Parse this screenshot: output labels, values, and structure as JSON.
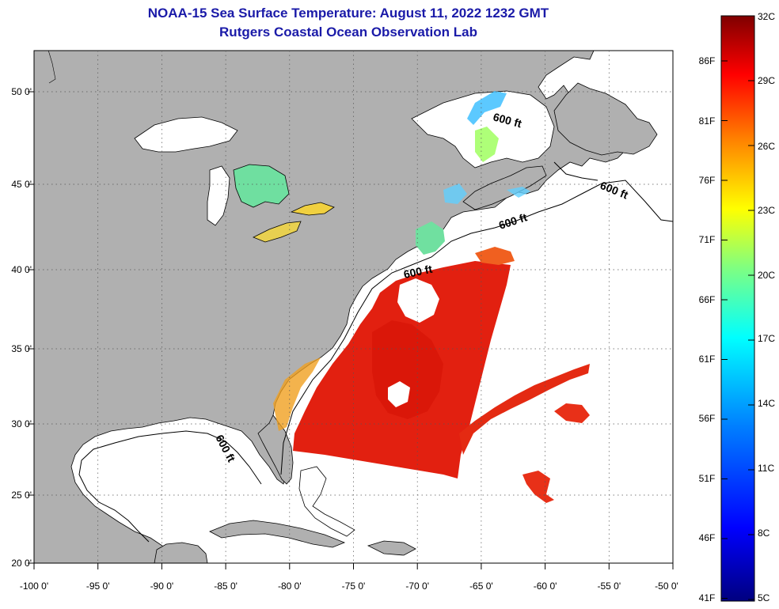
{
  "title": "NOAA-15 Sea Surface Temperature:  August 11, 2022 1232 GMT",
  "subtitle": "Rutgers Coastal Ocean Observation Lab",
  "axes": {
    "lon_labels": [
      "-100 0'",
      "-95 0'",
      "-90 0'",
      "-85 0'",
      "-80 0'",
      "-75 0'",
      "-70 0'",
      "-65 0'",
      "-60 0'",
      "-55 0'",
      "-50 0'"
    ],
    "lat_labels": [
      "50 0'",
      "45 0'",
      "40 0'",
      "35 0'",
      "30 0'",
      "25 0'",
      "20 0'"
    ]
  },
  "contour_label": "600 ft",
  "colorbar": {
    "celsius_labels": [
      "32C",
      "29C",
      "26C",
      "23C",
      "20C",
      "17C",
      "14C",
      "11C",
      "8C",
      "5C"
    ],
    "fahrenheit_labels": [
      "86F",
      "81F",
      "76F",
      "71F",
      "66F",
      "61F",
      "56F",
      "51F",
      "46F",
      "41F"
    ],
    "colors": [
      "#00007f",
      "#0000ff",
      "#0080ff",
      "#00ffff",
      "#80ff80",
      "#ffff00",
      "#ff8000",
      "#ff0000",
      "#7f0000"
    ]
  },
  "colors": {
    "land": "#b0b0b0",
    "ocean": "#ffffff",
    "title": "#1a1aa8"
  }
}
